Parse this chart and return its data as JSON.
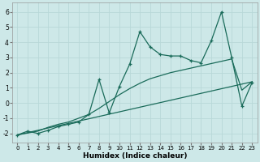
{
  "xlabel": "Humidex (Indice chaleur)",
  "xlim": [
    -0.5,
    23.5
  ],
  "ylim": [
    -2.6,
    6.6
  ],
  "xticks": [
    0,
    1,
    2,
    3,
    4,
    5,
    6,
    7,
    8,
    9,
    10,
    11,
    12,
    13,
    14,
    15,
    16,
    17,
    18,
    19,
    20,
    21,
    22,
    23
  ],
  "yticks": [
    -2,
    -1,
    0,
    1,
    2,
    3,
    4,
    5,
    6
  ],
  "bg_color": "#cde8e8",
  "line_color": "#1a6b5a",
  "grid_color": "#b8d8d8",
  "line1_x": [
    0,
    1,
    2,
    3,
    4,
    5,
    6,
    7,
    8,
    9,
    10,
    11,
    12,
    13,
    14,
    15,
    16,
    17,
    18,
    19,
    20,
    21,
    22,
    23
  ],
  "line1_y": [
    -2.1,
    -1.85,
    -2.0,
    -1.8,
    -1.55,
    -1.4,
    -1.25,
    -0.75,
    1.55,
    -0.65,
    1.1,
    2.55,
    4.7,
    3.7,
    3.2,
    3.1,
    3.1,
    2.8,
    2.65,
    4.1,
    6.0,
    3.0,
    -0.2,
    1.35
  ],
  "line2_x": [
    0,
    23
  ],
  "line2_y": [
    -2.1,
    1.4
  ],
  "line3_x": [
    0,
    2,
    3,
    4,
    5,
    6,
    7,
    8,
    9,
    10,
    11,
    12,
    13,
    14,
    15,
    16,
    17,
    18,
    19,
    20,
    21,
    22,
    23
  ],
  "line3_y": [
    -2.1,
    -1.85,
    -1.6,
    -1.4,
    -1.25,
    -1.0,
    -0.75,
    -0.35,
    0.1,
    0.55,
    0.95,
    1.3,
    1.6,
    1.8,
    2.0,
    2.15,
    2.3,
    2.45,
    2.6,
    2.75,
    2.9,
    0.85,
    1.4
  ]
}
